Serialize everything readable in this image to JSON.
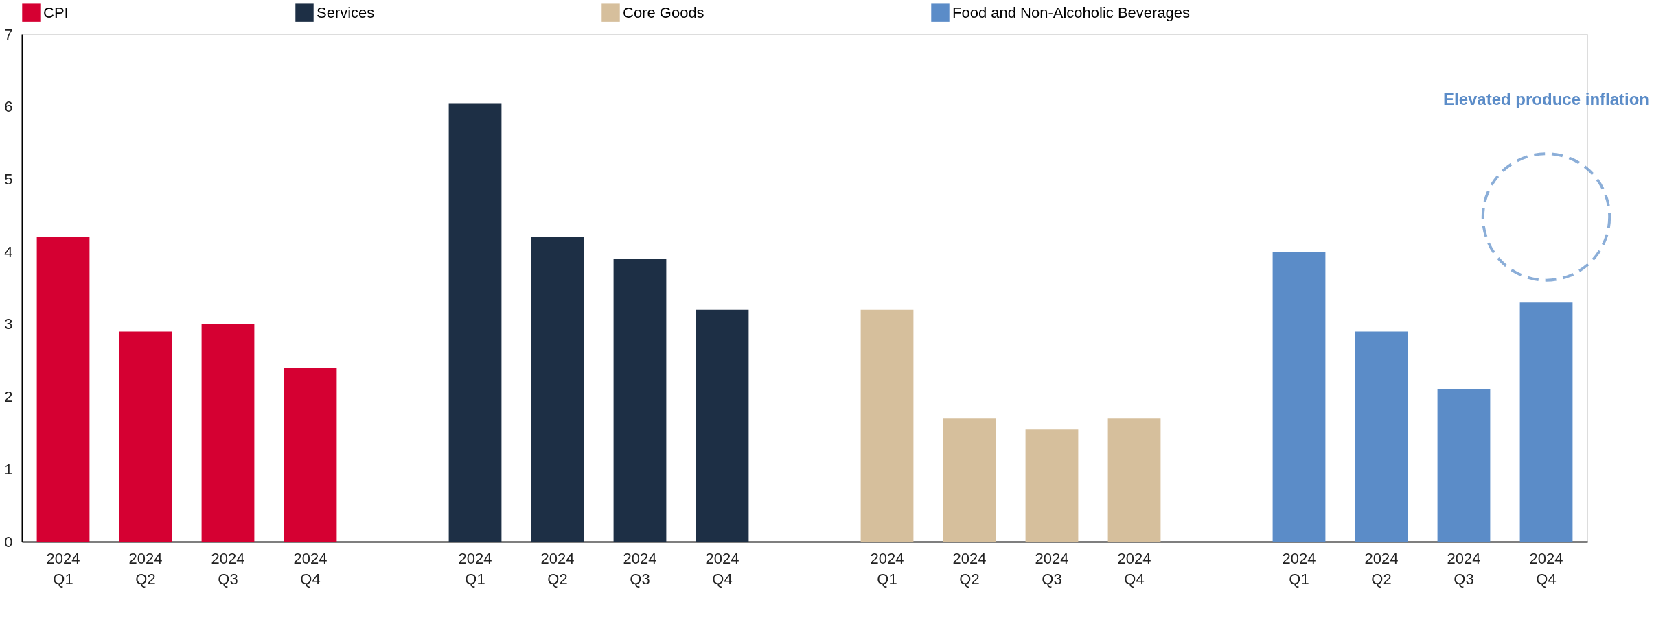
{
  "chart_data": {
    "type": "bar",
    "categories": [
      "2024 Q1",
      "2024 Q2",
      "2024 Q3",
      "2024 Q4",
      null,
      "2024 Q1",
      "2024 Q2",
      "2024 Q3",
      "2024 Q4",
      null,
      "2024 Q1",
      "2024 Q2",
      "2024 Q3",
      "2024 Q4",
      null,
      "2024 Q1",
      "2024 Q2",
      "2024 Q3",
      "2024 Q4"
    ],
    "series": [
      {
        "name": "CPI",
        "color": "#d50032",
        "values": [
          4.2,
          2.9,
          3.0,
          2.4,
          null,
          null,
          null,
          null,
          null,
          null,
          null,
          null,
          null,
          null,
          null,
          null,
          null,
          null,
          null
        ]
      },
      {
        "name": "Services",
        "color": "#1d2f45",
        "values": [
          null,
          null,
          null,
          null,
          null,
          6.05,
          4.2,
          3.9,
          3.2,
          null,
          null,
          null,
          null,
          null,
          null,
          null,
          null,
          null,
          null
        ]
      },
      {
        "name": "Core Goods",
        "color": "#d6bf9c",
        "values": [
          null,
          null,
          null,
          null,
          null,
          null,
          null,
          null,
          null,
          null,
          3.2,
          1.7,
          1.55,
          1.7,
          null,
          null,
          null,
          null,
          null
        ]
      },
      {
        "name": "Food and Non-Alcoholic Beverages",
        "color": "#5b8cc8",
        "values": [
          null,
          null,
          null,
          null,
          null,
          null,
          null,
          null,
          null,
          null,
          null,
          null,
          null,
          null,
          null,
          4.0,
          2.9,
          2.1,
          3.3
        ]
      }
    ],
    "ylim": [
      0,
      7
    ],
    "yticks": [
      0,
      1,
      2,
      3,
      4,
      5,
      6,
      7
    ],
    "annotations": [
      "Elevated produce inflation"
    ],
    "grid": false,
    "legend": "top"
  }
}
